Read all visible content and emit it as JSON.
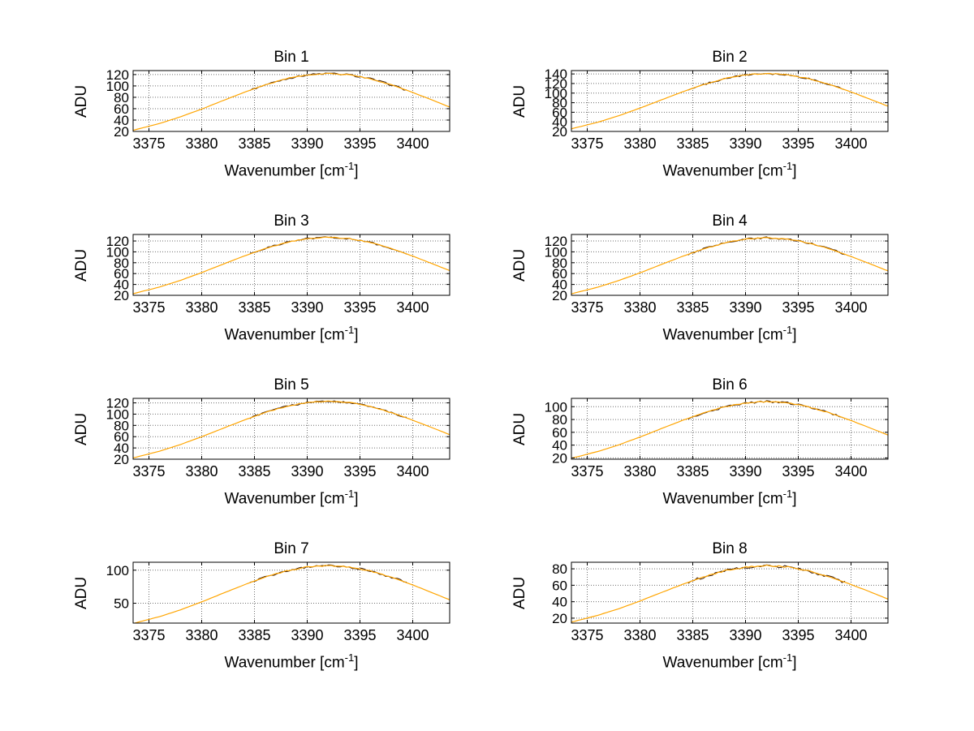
{
  "labels": {
    "ylabel": "ADU",
    "xlabel_pre": "Wavenumber [cm",
    "xlabel_sup": "-1",
    "xlabel_post": "]"
  },
  "colors": {
    "line": "#FFA500",
    "noise": "#3B1A05",
    "grid": "#6E6E6E",
    "axis": "#000000",
    "background": "#FFFFFF"
  },
  "chart_data": [
    {
      "type": "line",
      "title": "Bin 1",
      "ylabel": "ADU",
      "xlabel": "Wavenumber [cm^-1]",
      "x": [
        3373.5,
        3376,
        3378,
        3380,
        3382,
        3384,
        3386,
        3388,
        3390,
        3392,
        3394,
        3396,
        3398,
        3400,
        3402,
        3403.5
      ],
      "y": [
        22.1,
        33.9,
        45.8,
        59.4,
        74.1,
        88.6,
        101.9,
        112.6,
        119.6,
        122,
        119.6,
        112.6,
        101.9,
        88.6,
        74.1,
        63
      ],
      "xlim": [
        3373.5,
        3403.5
      ],
      "ylim": [
        20,
        127
      ],
      "xticks": [
        3375,
        3380,
        3385,
        3390,
        3395,
        3400
      ],
      "yticks": [
        20,
        40,
        60,
        80,
        100,
        120
      ],
      "grid": true
    },
    {
      "type": "line",
      "title": "Bin 2",
      "ylabel": "ADU",
      "xlabel": "Wavenumber [cm^-1]",
      "x": [
        3373.5,
        3376,
        3378,
        3380,
        3382,
        3384,
        3386,
        3388,
        3390,
        3392,
        3394,
        3396,
        3398,
        3400,
        3402,
        3403.5
      ],
      "y": [
        25.5,
        39.2,
        52.9,
        68.7,
        85.6,
        102.4,
        117.7,
        130.1,
        138.2,
        141,
        138.2,
        130.1,
        117.7,
        102.4,
        85.6,
        72.8
      ],
      "xlim": [
        3373.5,
        3403.5
      ],
      "ylim": [
        20,
        147
      ],
      "xticks": [
        3375,
        3380,
        3385,
        3390,
        3395,
        3400
      ],
      "yticks": [
        20,
        40,
        60,
        80,
        100,
        120,
        140
      ],
      "grid": true
    },
    {
      "type": "line",
      "title": "Bin 3",
      "ylabel": "ADU",
      "xlabel": "Wavenumber [cm^-1]",
      "x": [
        3373.5,
        3376,
        3378,
        3380,
        3382,
        3384,
        3386,
        3388,
        3390,
        3392,
        3394,
        3396,
        3398,
        3400,
        3402,
        3403.5
      ],
      "y": [
        23,
        35.3,
        47.6,
        61.8,
        77.1,
        92.2,
        106,
        117.2,
        124.5,
        127,
        124.5,
        117.2,
        106,
        92.2,
        77.1,
        65.5
      ],
      "xlim": [
        3373.5,
        3403.5
      ],
      "ylim": [
        20,
        132
      ],
      "xticks": [
        3375,
        3380,
        3385,
        3390,
        3395,
        3400
      ],
      "yticks": [
        20,
        40,
        60,
        80,
        100,
        120
      ],
      "grid": true
    },
    {
      "type": "line",
      "title": "Bin 4",
      "ylabel": "ADU",
      "xlabel": "Wavenumber [cm^-1]",
      "x": [
        3373.5,
        3376,
        3378,
        3380,
        3382,
        3384,
        3386,
        3388,
        3390,
        3392,
        3394,
        3396,
        3398,
        3400,
        3402,
        3403.5
      ],
      "y": [
        22.8,
        35,
        47.3,
        61.4,
        76.5,
        91.5,
        105.2,
        116.3,
        123.5,
        126,
        123.5,
        116.3,
        105.2,
        91.5,
        76.5,
        65
      ],
      "xlim": [
        3373.5,
        3403.5
      ],
      "ylim": [
        20,
        132
      ],
      "xticks": [
        3375,
        3380,
        3385,
        3390,
        3395,
        3400
      ],
      "yticks": [
        20,
        40,
        60,
        80,
        100,
        120
      ],
      "grid": true
    },
    {
      "type": "line",
      "title": "Bin 5",
      "ylabel": "ADU",
      "xlabel": "Wavenumber [cm^-1]",
      "x": [
        3373.5,
        3376,
        3378,
        3380,
        3382,
        3384,
        3386,
        3388,
        3390,
        3392,
        3394,
        3396,
        3398,
        3400,
        3402,
        3403.5
      ],
      "y": [
        22.3,
        34.2,
        46.1,
        59.9,
        74.7,
        89.3,
        102.7,
        113.5,
        120.5,
        123,
        120.5,
        113.5,
        102.7,
        89.3,
        74.7,
        63.5
      ],
      "xlim": [
        3373.5,
        3403.5
      ],
      "ylim": [
        20,
        128
      ],
      "xticks": [
        3375,
        3380,
        3385,
        3390,
        3395,
        3400
      ],
      "yticks": [
        20,
        40,
        60,
        80,
        100,
        120
      ],
      "grid": true
    },
    {
      "type": "line",
      "title": "Bin 6",
      "ylabel": "ADU",
      "xlabel": "Wavenumber [cm^-1]",
      "x": [
        3373.5,
        3376,
        3378,
        3380,
        3382,
        3384,
        3386,
        3388,
        3390,
        3392,
        3394,
        3396,
        3398,
        3400,
        3402,
        3403.5
      ],
      "y": [
        19.5,
        30,
        40.5,
        52.6,
        65.6,
        78.4,
        90.2,
        99.7,
        105.8,
        108,
        105.8,
        99.7,
        90.2,
        78.4,
        65.6,
        55.7
      ],
      "xlim": [
        3373.5,
        3403.5
      ],
      "ylim": [
        18,
        113
      ],
      "xticks": [
        3375,
        3380,
        3385,
        3390,
        3395,
        3400
      ],
      "yticks": [
        20,
        40,
        60,
        80,
        100
      ],
      "grid": true
    },
    {
      "type": "line",
      "title": "Bin 7",
      "ylabel": "ADU",
      "xlabel": "Wavenumber [cm^-1]",
      "x": [
        3373.5,
        3376,
        3378,
        3380,
        3382,
        3384,
        3386,
        3388,
        3390,
        3392,
        3394,
        3396,
        3398,
        3400,
        3402,
        3403.5
      ],
      "y": [
        19.4,
        29.7,
        40.1,
        52.1,
        65,
        77.7,
        89.3,
        98.8,
        104.9,
        107,
        104.9,
        98.8,
        89.3,
        77.7,
        65,
        55.2
      ],
      "xlim": [
        3373.5,
        3403.5
      ],
      "ylim": [
        20,
        112
      ],
      "xticks": [
        3375,
        3380,
        3385,
        3390,
        3395,
        3400
      ],
      "yticks": [
        50,
        100
      ],
      "grid": true
    },
    {
      "type": "line",
      "title": "Bin 8",
      "ylabel": "ADU",
      "xlabel": "Wavenumber [cm^-1]",
      "x": [
        3373.5,
        3376,
        3378,
        3380,
        3382,
        3384,
        3386,
        3388,
        3390,
        3392,
        3394,
        3396,
        3398,
        3400,
        3402,
        3403.5
      ],
      "y": [
        15.2,
        23.4,
        31.5,
        40.9,
        51,
        61,
        70.1,
        77.5,
        82.3,
        84,
        82.3,
        77.5,
        70.1,
        61,
        51,
        43.3
      ],
      "xlim": [
        3373.5,
        3403.5
      ],
      "ylim": [
        14,
        88
      ],
      "xticks": [
        3375,
        3380,
        3385,
        3390,
        3395,
        3400
      ],
      "yticks": [
        20,
        40,
        60,
        80
      ],
      "grid": true
    }
  ]
}
